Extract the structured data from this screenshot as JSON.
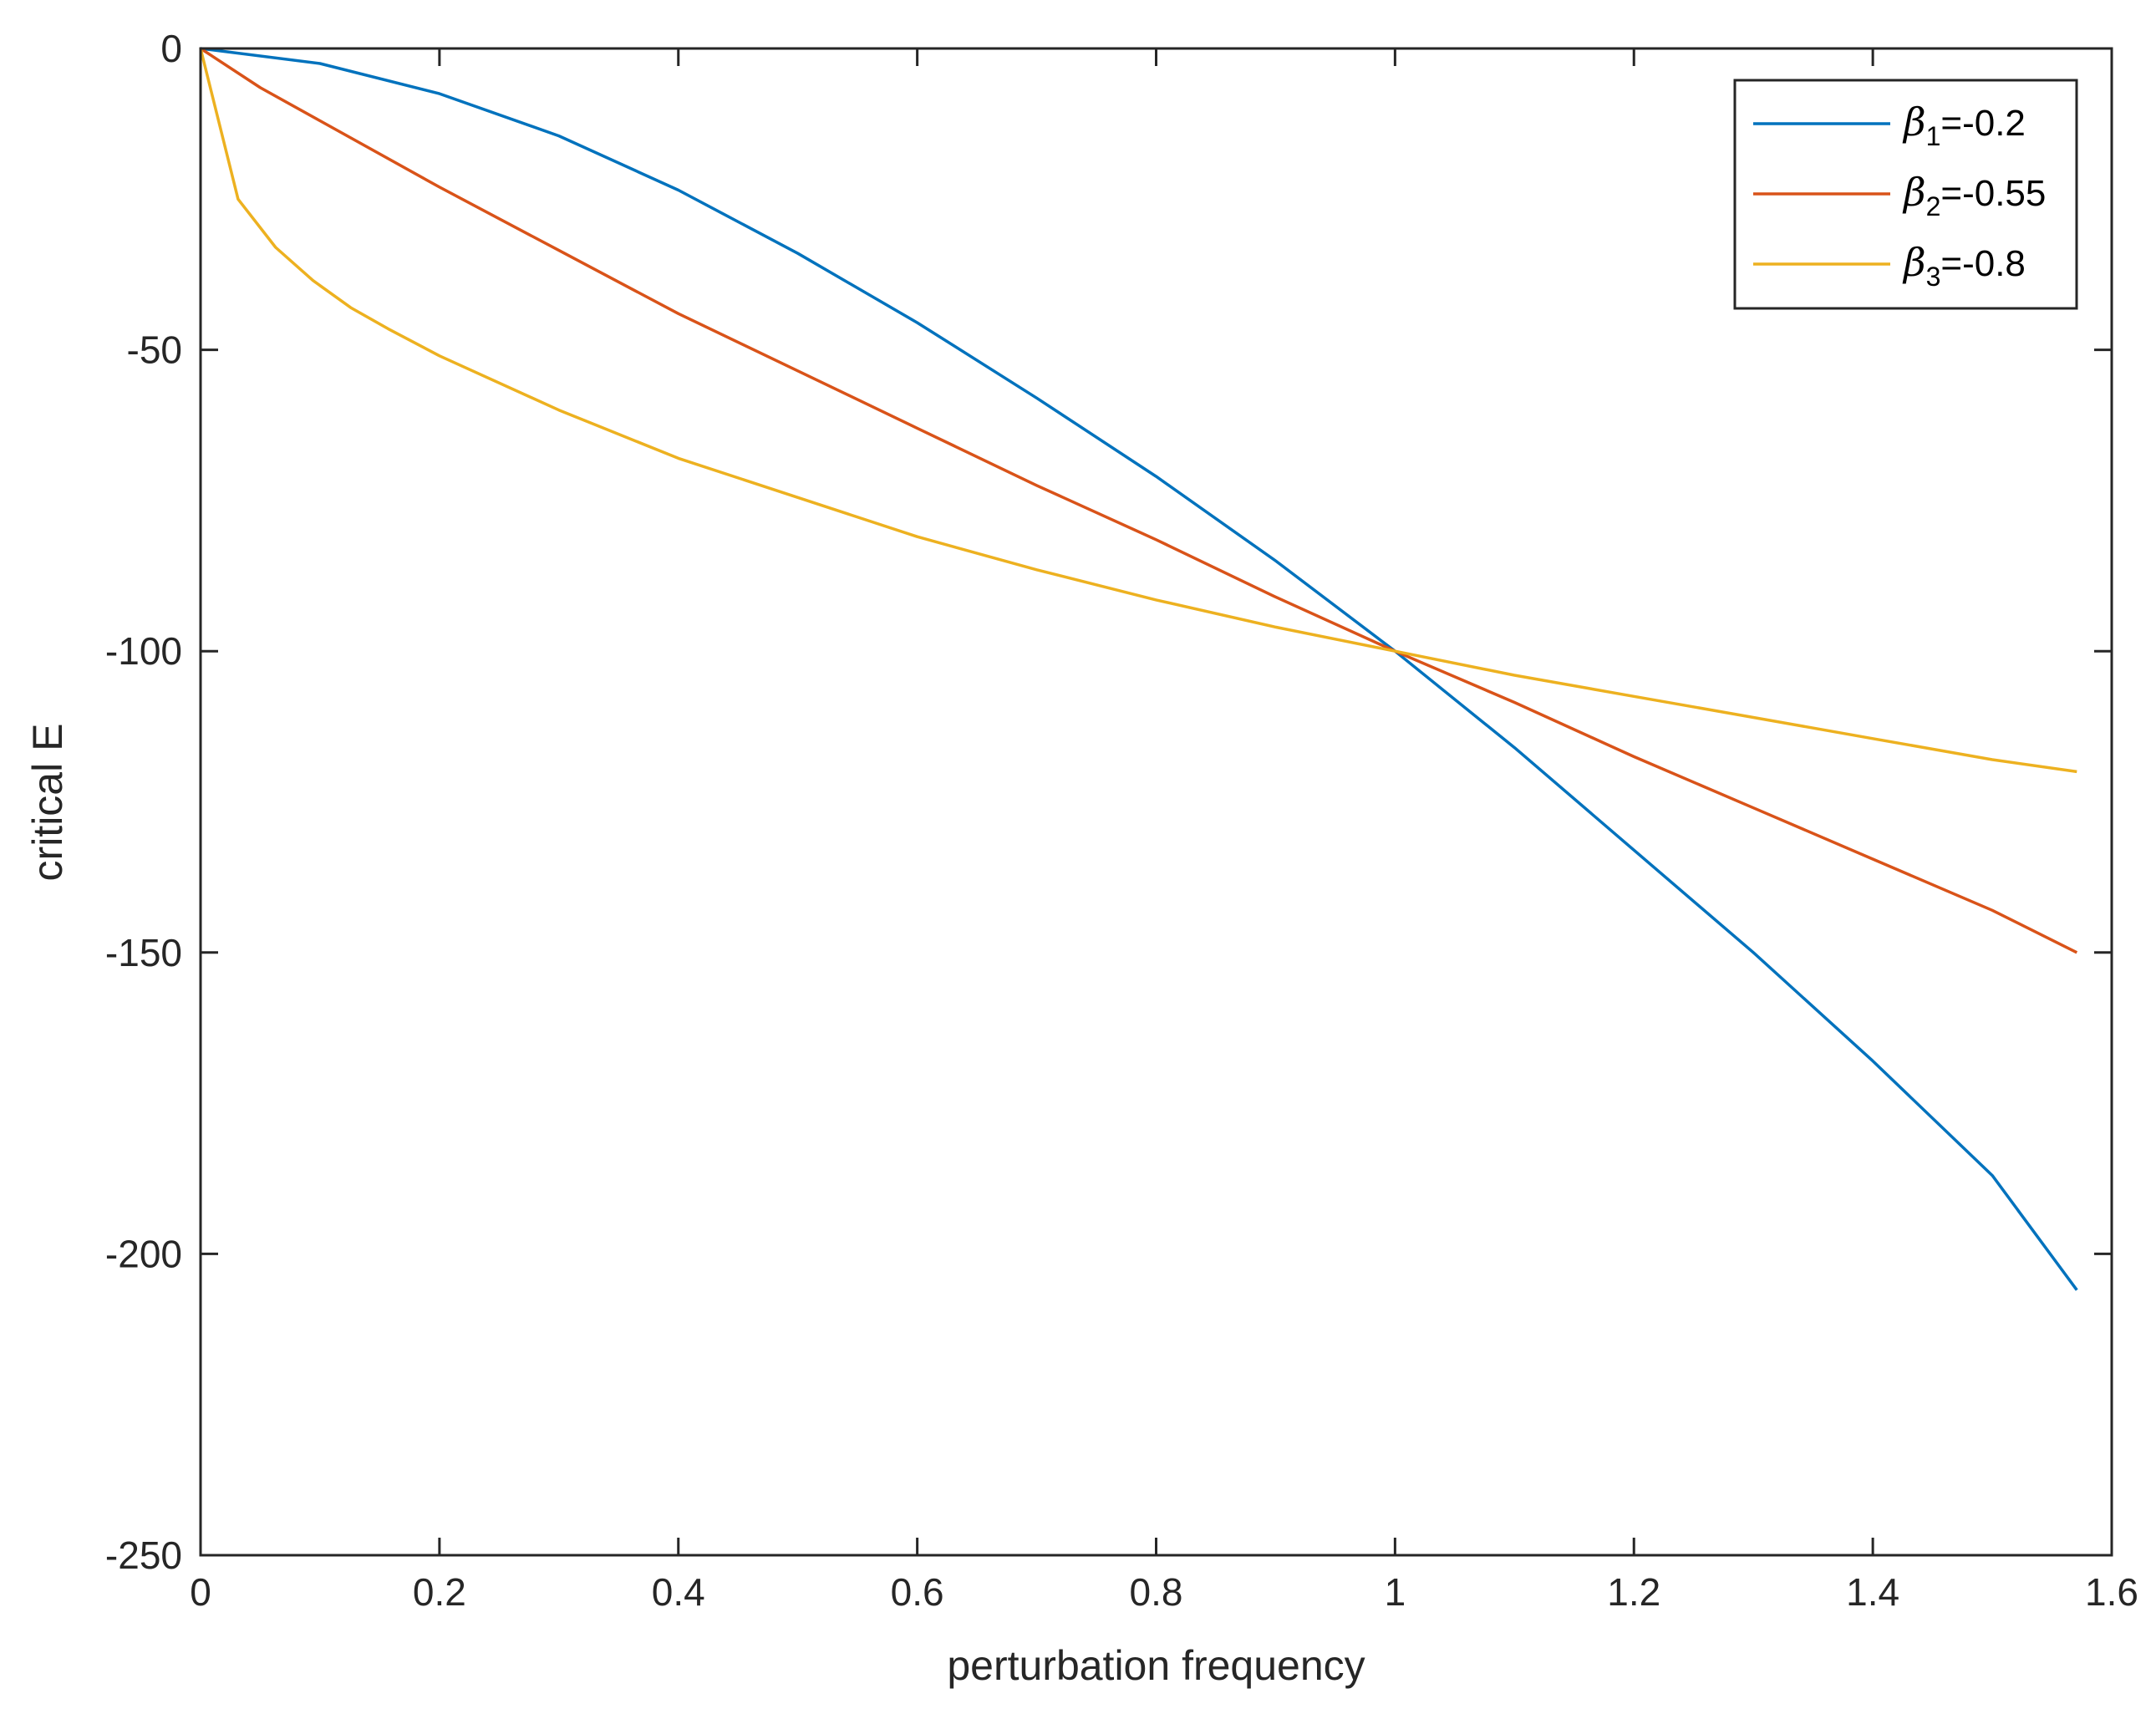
{
  "chart_data": {
    "type": "line",
    "title": "",
    "xlabel": "perturbation frequency",
    "ylabel": "critical E",
    "xlim": [
      0,
      1.6
    ],
    "ylim": [
      -250,
      0
    ],
    "xticks": [
      0,
      0.2,
      0.4,
      0.6,
      0.8,
      1,
      1.2,
      1.4,
      1.6
    ],
    "xtick_labels": [
      "0",
      "0.2",
      "0.4",
      "0.6",
      "0.8",
      "1",
      "1.2",
      "1.4",
      "1.6"
    ],
    "yticks": [
      0,
      -50,
      -100,
      -150,
      -200,
      -250
    ],
    "ytick_labels": [
      "0",
      "-50",
      "-100",
      "-150",
      "-200",
      "-250"
    ],
    "grid": false,
    "legend_position": "top-right",
    "series": [
      {
        "name_symbol": "β",
        "name_sub": "1",
        "name_value": "=-0.2",
        "color": "#0072BD",
        "x": [
          0,
          0.1,
          0.2,
          0.3,
          0.4,
          0.5,
          0.6,
          0.7,
          0.8,
          0.9,
          1.0,
          1.1,
          1.2,
          1.3,
          1.4,
          1.5,
          1.5708
        ],
        "y": [
          0,
          -2.5,
          -7.5,
          -14.5,
          -23.5,
          -34,
          -45.5,
          -58,
          -71,
          -85,
          -100,
          -116,
          -133,
          -150,
          -168,
          -187,
          -206
        ]
      },
      {
        "name_symbol": "β",
        "name_sub": "2",
        "name_value": "=-0.55",
        "color": "#D95319",
        "x": [
          0,
          0.05,
          0.1,
          0.2,
          0.3,
          0.4,
          0.5,
          0.6,
          0.7,
          0.8,
          0.9,
          1.0,
          1.1,
          1.2,
          1.3,
          1.4,
          1.5,
          1.5708
        ],
        "y": [
          0,
          -6.5,
          -12,
          -23,
          -33.5,
          -44,
          -53.5,
          -63,
          -72.5,
          -81.5,
          -91,
          -100,
          -108.5,
          -117.5,
          -126,
          -134.5,
          -143,
          -150
        ]
      },
      {
        "name_symbol": "β",
        "name_sub": "3",
        "name_value": "=-0.8",
        "color": "#EDB120",
        "x": [
          0,
          0.0314,
          0.0628,
          0.0942,
          0.1257,
          0.157,
          0.2,
          0.3,
          0.4,
          0.5,
          0.6,
          0.7,
          0.8,
          0.9,
          1.0,
          1.1,
          1.2,
          1.3,
          1.4,
          1.5,
          1.5708
        ],
        "y": [
          0,
          -25,
          -33,
          -38.5,
          -43,
          -46.5,
          -51,
          -60,
          -68,
          -74.5,
          -81,
          -86.5,
          -91.5,
          -96,
          -100,
          -104,
          -107.5,
          -111,
          -114.5,
          -118,
          -120
        ]
      }
    ]
  }
}
